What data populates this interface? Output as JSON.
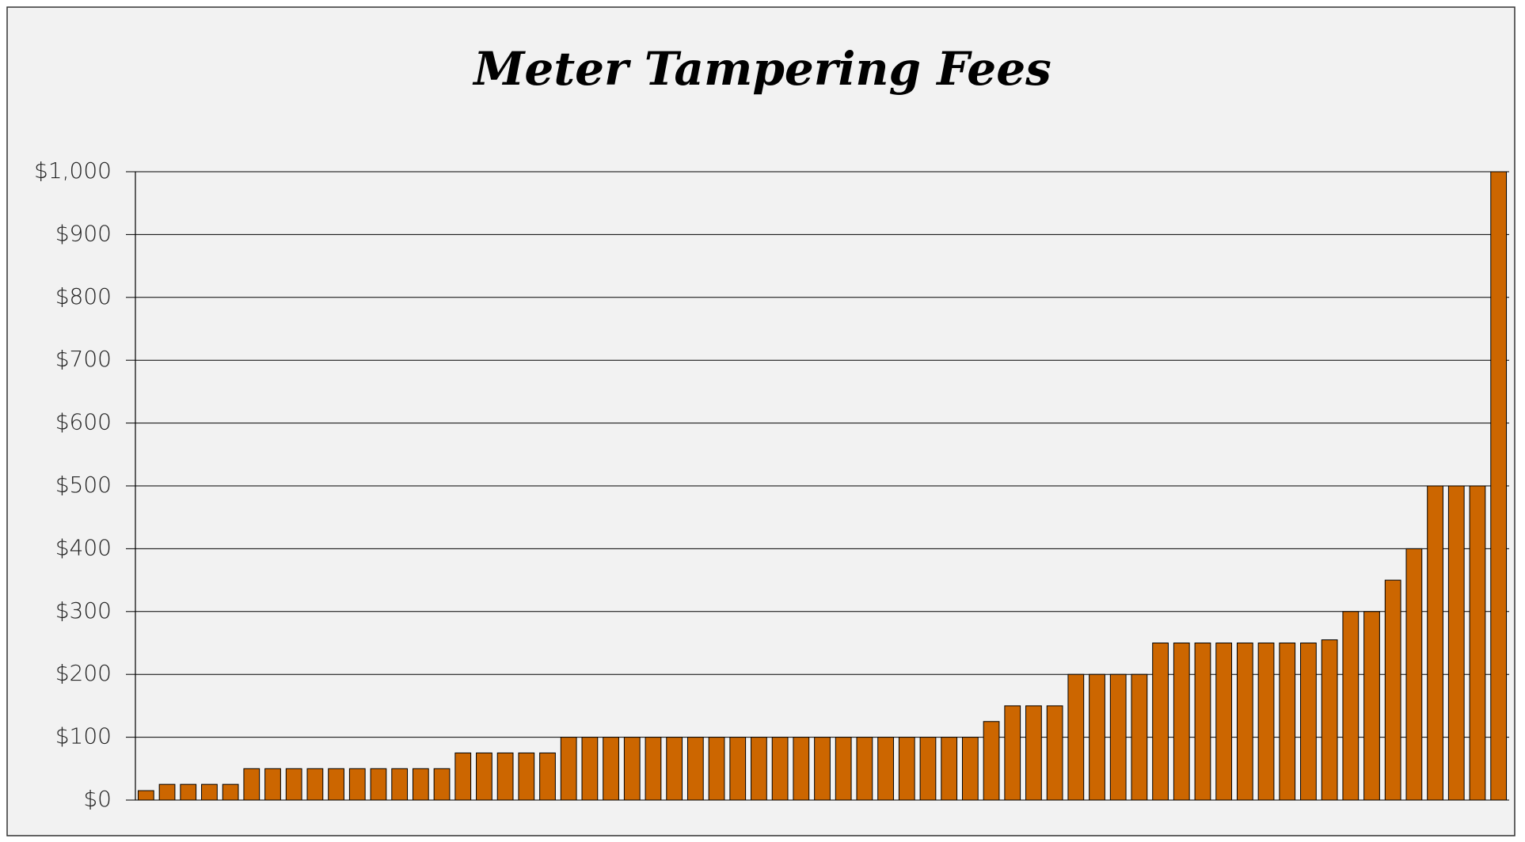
{
  "chart_data": {
    "type": "bar",
    "title": "Meter Tampering Fees",
    "categories": [
      null,
      null,
      null,
      null,
      null,
      null,
      null,
      null,
      null,
      null,
      null,
      null,
      null,
      null,
      null,
      null,
      null,
      null,
      null,
      null,
      null,
      null,
      null,
      null,
      null,
      null,
      null,
      null,
      null,
      null,
      null,
      null,
      null,
      null,
      null,
      null,
      null,
      null,
      null,
      null,
      null,
      null,
      null,
      null,
      null,
      null,
      null,
      null,
      null,
      null,
      null,
      null,
      null,
      null,
      null,
      null,
      null,
      null,
      null,
      null,
      null,
      null,
      null,
      null,
      null
    ],
    "values": [
      15,
      25,
      25,
      25,
      25,
      50,
      50,
      50,
      50,
      50,
      50,
      50,
      50,
      50,
      50,
      75,
      75,
      75,
      75,
      75,
      100,
      100,
      100,
      100,
      100,
      100,
      100,
      100,
      100,
      100,
      100,
      100,
      100,
      100,
      100,
      100,
      100,
      100,
      100,
      100,
      125,
      150,
      150,
      150,
      200,
      200,
      200,
      200,
      250,
      250,
      250,
      250,
      250,
      250,
      250,
      250,
      255,
      300,
      300,
      350,
      400,
      500,
      500,
      500,
      1000
    ],
    "color": "#cc6600",
    "ylim": [
      0,
      1000
    ],
    "yticks": [
      {
        "value": 0,
        "label": "$0"
      },
      {
        "value": 100,
        "label": "$100"
      },
      {
        "value": 200,
        "label": "$200"
      },
      {
        "value": 300,
        "label": "$300"
      },
      {
        "value": 400,
        "label": "$400"
      },
      {
        "value": 500,
        "label": "$500"
      },
      {
        "value": 600,
        "label": "$600"
      },
      {
        "value": 700,
        "label": "$700"
      },
      {
        "value": 800,
        "label": "$800"
      },
      {
        "value": 900,
        "label": "$900"
      },
      {
        "value": 1000,
        "label": "$1,000"
      }
    ],
    "grid": true
  }
}
